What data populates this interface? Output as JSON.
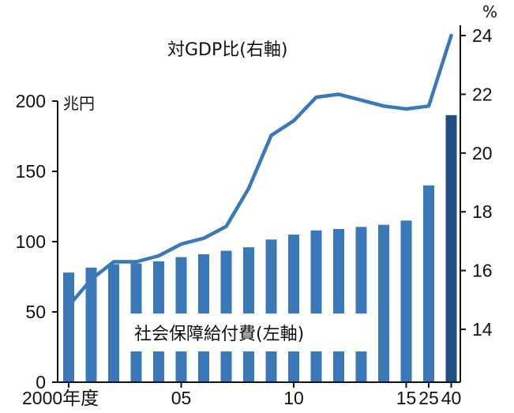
{
  "chart_data": {
    "type": "bar+line",
    "categories": [
      "2000年度",
      "",
      "",
      "",
      "",
      "05",
      "",
      "",
      "",
      "",
      "10",
      "",
      "",
      "",
      "",
      "15",
      "25",
      "40"
    ],
    "x_ticks": [
      "2000年度",
      "05",
      "10",
      "15",
      "25",
      "40"
    ],
    "series": [
      {
        "name": "社会保障給付費(左軸)",
        "type": "bar",
        "axis": "left",
        "color": "#3a78b8",
        "last_color": "#1f4f80",
        "values": [
          78,
          81.5,
          84,
          84.5,
          86,
          89,
          91,
          93.5,
          96,
          101.5,
          105,
          108,
          109,
          110.5,
          112,
          115,
          140,
          190
        ]
      },
      {
        "name": "対GDP比(右軸)",
        "type": "line",
        "axis": "right",
        "color": "#3a78b8",
        "values": [
          14.8,
          15.7,
          16.3,
          16.3,
          16.5,
          16.9,
          17.1,
          17.5,
          18.8,
          20.6,
          21.1,
          21.9,
          22.0,
          21.8,
          21.6,
          21.5,
          21.6,
          24.0
        ]
      }
    ],
    "left_axis": {
      "unit": "兆円",
      "range": [
        0,
        200
      ],
      "ticks": [
        "0",
        "50",
        "100",
        "150",
        "200"
      ]
    },
    "right_axis": {
      "unit": "%",
      "range": [
        14,
        24
      ],
      "ticks": [
        "14",
        "16",
        "18",
        "20",
        "22",
        "24"
      ]
    }
  }
}
